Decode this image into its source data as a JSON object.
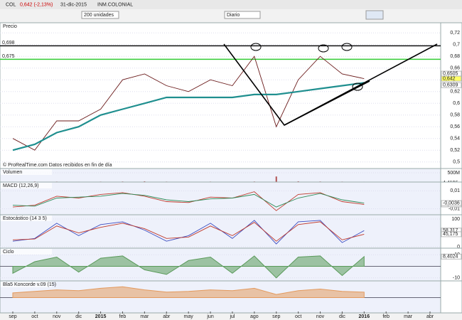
{
  "toolbar": {
    "symbol": "COL",
    "price": "0,642 (-2,13%)",
    "date": "31-dic-2015",
    "name": "INM.COLONIAL",
    "units": "200 unidades",
    "period": "Diario"
  },
  "chart_data": [
    {
      "type": "line",
      "title": "Precio",
      "categories": [
        "sep",
        "oct",
        "nov",
        "dic",
        "2015",
        "feb",
        "mar",
        "abr",
        "may",
        "jun",
        "jul",
        "ago",
        "sep",
        "oct",
        "nov",
        "dic",
        "2016",
        "feb",
        "mar",
        "abr"
      ],
      "series": [
        {
          "color": "#6b1b1b",
          "values": [
            0.54,
            0.52,
            0.57,
            0.57,
            0.59,
            0.64,
            0.65,
            0.63,
            0.62,
            0.64,
            0.63,
            0.68,
            0.56,
            0.64,
            0.68,
            0.65,
            0.642,
            null,
            null,
            null
          ]
        },
        {
          "color": "#1f8f8f",
          "values": [
            0.52,
            0.53,
            0.55,
            0.56,
            0.58,
            0.59,
            0.6,
            0.61,
            0.61,
            0.61,
            0.61,
            0.615,
            0.615,
            0.62,
            0.625,
            0.63,
            0.635,
            null,
            null,
            null
          ]
        }
      ],
      "ylim": [
        0.49,
        0.73
      ],
      "yticks": [
        {
          "value": 0.72,
          "label": "0,72"
        },
        {
          "value": 0.7,
          "label": "0,7"
        },
        {
          "value": 0.68,
          "label": "0,68"
        },
        {
          "value": 0.66,
          "label": "0,66"
        },
        {
          "value": 0.64,
          "label": "0,64"
        },
        {
          "value": 0.62,
          "label": "0,62"
        },
        {
          "value": 0.6,
          "label": "0,6"
        },
        {
          "value": 0.58,
          "label": "0,58"
        },
        {
          "value": 0.56,
          "label": "0,56"
        },
        {
          "value": 0.54,
          "label": "0,54"
        },
        {
          "value": 0.52,
          "label": "0,52"
        },
        {
          "value": 0.5,
          "label": "0,5"
        }
      ],
      "hlines": [
        {
          "value": 0.698,
          "label": "0,698",
          "color": "#000000"
        },
        {
          "value": 0.675,
          "label": "0,675",
          "color": "#33cc33"
        }
      ],
      "readouts": [
        {
          "value": 0.6505,
          "label": "0,6505"
        },
        {
          "value": 0.642,
          "label": "0,642"
        },
        {
          "value": 0.6309,
          "label": "0,6309"
        }
      ],
      "annotation": "© ProRealTime.com  Datos recibidos en fin de día"
    },
    {
      "type": "bar",
      "title": "Volumen",
      "color": "#b05050",
      "values": [
        20000000,
        30000000,
        25000000,
        20000000,
        25000000,
        30000000,
        40000000,
        25000000,
        20000000,
        25000000,
        20000000,
        30000000,
        300000000,
        40000000,
        30000000,
        25000000,
        20000000,
        null,
        null,
        null
      ],
      "ylim": [
        0,
        500000000
      ],
      "yticks": [
        {
          "value": 500000000,
          "label": "500M"
        }
      ],
      "readout_text": "4,4196"
    },
    {
      "type": "line",
      "title": "MACD (12,26,9)",
      "series": [
        {
          "color": "#c0392b",
          "values": [
            -0.008,
            -0.006,
            0.004,
            0.002,
            0.006,
            0.008,
            0.004,
            -0.002,
            -0.003,
            0.003,
            0.002,
            0.009,
            -0.012,
            0.006,
            0.008,
            -0.002,
            -0.0051,
            null,
            null,
            null
          ]
        },
        {
          "color": "#2e8b57",
          "values": [
            -0.006,
            -0.007,
            0.002,
            0.003,
            0.004,
            0.007,
            0.005,
            0.0,
            -0.002,
            0.001,
            0.002,
            0.006,
            -0.008,
            0.002,
            0.007,
            0.0,
            -0.0036,
            null,
            null,
            null
          ]
        }
      ],
      "ylim": [
        -0.015,
        0.015
      ],
      "yticks": [
        {
          "value": 0.01,
          "label": "0,01"
        },
        {
          "value": -0.01,
          "label": "-0,01"
        }
      ],
      "readouts": [
        {
          "value": -0.0051,
          "label": "-0,0051"
        },
        {
          "value": -0.0036,
          "label": "-0,0036"
        }
      ]
    },
    {
      "type": "line",
      "title": "Estocástico (14 3 5)",
      "series": [
        {
          "color": "#3b4cc0",
          "values": [
            20,
            30,
            85,
            40,
            80,
            90,
            60,
            20,
            40,
            85,
            30,
            95,
            10,
            90,
            95,
            15,
            58.317,
            null,
            null,
            null
          ]
        },
        {
          "color": "#c0392b",
          "values": [
            25,
            28,
            75,
            50,
            70,
            85,
            65,
            30,
            35,
            75,
            40,
            88,
            20,
            80,
            90,
            25,
            45.175,
            null,
            null,
            null
          ]
        }
      ],
      "ylim": [
        0,
        100
      ],
      "yticks": [
        100,
        0
      ],
      "readouts": [
        {
          "value": 58.317,
          "label": "58,317"
        },
        {
          "value": 45.175,
          "label": "45,175"
        }
      ]
    },
    {
      "type": "area",
      "title": "Ciclo",
      "color": "#5a9a5a",
      "values": [
        -6,
        4,
        8,
        -5,
        7,
        9,
        -3,
        -7,
        5,
        8,
        -6,
        9,
        -10,
        8,
        9,
        -8,
        8.4024,
        null,
        null,
        null
      ],
      "ylim": [
        -12,
        12
      ],
      "yticks": [
        10,
        -10
      ],
      "readouts": [
        {
          "value": 8.4024,
          "label": "8,4024"
        }
      ]
    },
    {
      "type": "area",
      "title": "Bla5 Koncorde v.09 (15)",
      "color": "#e39a5e",
      "values": [
        6,
        8,
        10,
        9,
        12,
        14,
        10,
        7,
        8,
        10,
        9,
        12,
        4,
        9,
        11,
        8,
        7,
        null,
        null,
        null
      ],
      "ylim": [
        -16,
        16
      ]
    }
  ]
}
